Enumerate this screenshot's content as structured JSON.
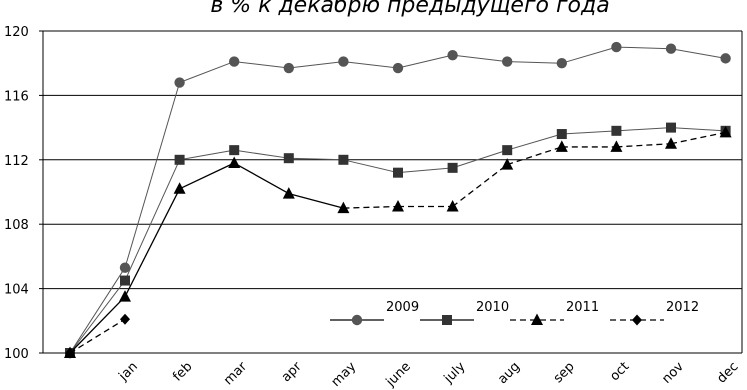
{
  "chart_data": {
    "type": "line",
    "title": "в % к декабрю предыдущего года",
    "xlabel": "",
    "ylabel": "",
    "ylim": [
      100,
      120
    ],
    "yticks": [
      "100",
      "104",
      "108",
      "112",
      "116",
      "120"
    ],
    "categories": [
      "jan",
      "feb",
      "mar",
      "apr",
      "may",
      "june",
      "july",
      "aug",
      "sep",
      "oct",
      "nov",
      "dec"
    ],
    "grid": "horizontal",
    "legend_position": "bottom-right",
    "series": [
      {
        "name": "2009",
        "marker": "circle",
        "line": "solid",
        "color": "#555555",
        "points": [
          [
            "start",
            100.0
          ],
          [
            "jan",
            105.3
          ],
          [
            "feb",
            116.8
          ],
          [
            "mar",
            118.1
          ],
          [
            "apr",
            117.7
          ],
          [
            "may",
            118.1
          ],
          [
            "june",
            117.7
          ],
          [
            "july",
            118.5
          ],
          [
            "aug",
            118.1
          ],
          [
            "sep",
            118.0
          ],
          [
            "oct",
            119.0
          ],
          [
            "nov",
            118.9
          ],
          [
            "dec",
            118.3
          ]
        ]
      },
      {
        "name": "2010",
        "marker": "square",
        "line": "solid",
        "color": "#555555",
        "points": [
          [
            "start",
            100.0
          ],
          [
            "jan",
            104.5
          ],
          [
            "feb",
            112.0
          ],
          [
            "mar",
            112.6
          ],
          [
            "apr",
            112.1
          ],
          [
            "may",
            112.0
          ],
          [
            "june",
            111.2
          ],
          [
            "july",
            111.5
          ],
          [
            "aug",
            112.6
          ],
          [
            "sep",
            113.6
          ],
          [
            "oct",
            113.8
          ],
          [
            "nov",
            114.0
          ],
          [
            "dec",
            113.8
          ]
        ]
      },
      {
        "name": "2011",
        "marker": "triangle",
        "line": "solid-then-dashed",
        "color": "#000000",
        "points": [
          [
            "start",
            100.0
          ],
          [
            "jan",
            103.5
          ],
          [
            "feb",
            110.2
          ],
          [
            "mar",
            111.8
          ],
          [
            "apr",
            109.9
          ],
          [
            "may",
            109.0
          ],
          [
            "june",
            109.1
          ],
          [
            "july",
            109.1
          ],
          [
            "aug",
            111.7
          ],
          [
            "sep",
            112.8
          ],
          [
            "oct",
            112.8
          ],
          [
            "nov",
            113.0
          ],
          [
            "dec",
            113.7
          ]
        ]
      },
      {
        "name": "2012",
        "marker": "diamond",
        "line": "dashed",
        "color": "#000000",
        "points": [
          [
            "start",
            100.0
          ],
          [
            "jan",
            102.1
          ]
        ]
      }
    ]
  }
}
